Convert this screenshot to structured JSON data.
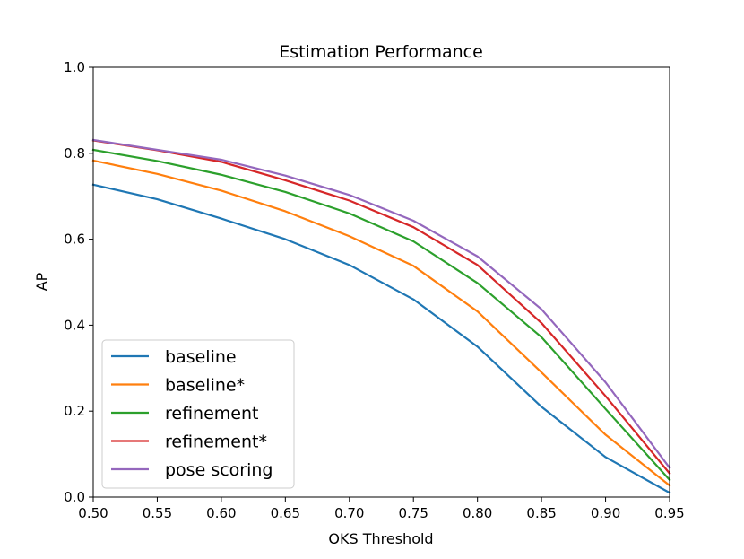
{
  "chart_data": {
    "type": "line",
    "title": "Estimation Performance",
    "xlabel": "OKS Threshold",
    "ylabel": "AP",
    "xlim": [
      0.5,
      0.95
    ],
    "ylim": [
      0.0,
      1.0
    ],
    "x": [
      0.5,
      0.55,
      0.6,
      0.65,
      0.7,
      0.75,
      0.8,
      0.85,
      0.9,
      0.95
    ],
    "xticks": [
      "0.50",
      "0.55",
      "0.60",
      "0.65",
      "0.70",
      "0.75",
      "0.80",
      "0.85",
      "0.90",
      "0.95"
    ],
    "yticks": [
      "0.0",
      "0.2",
      "0.4",
      "0.6",
      "0.8",
      "1.0"
    ],
    "grid": false,
    "legend_position": "bottom-left",
    "series": [
      {
        "name": "baseline",
        "color": "#1f77b4",
        "values": [
          0.727,
          0.693,
          0.648,
          0.6,
          0.54,
          0.46,
          0.35,
          0.21,
          0.093,
          0.01
        ]
      },
      {
        "name": "baseline*",
        "color": "#ff7f0e",
        "values": [
          0.783,
          0.752,
          0.713,
          0.665,
          0.607,
          0.538,
          0.432,
          0.29,
          0.145,
          0.027
        ]
      },
      {
        "name": "refinement",
        "color": "#2ca02c",
        "values": [
          0.808,
          0.782,
          0.75,
          0.71,
          0.66,
          0.595,
          0.498,
          0.372,
          0.205,
          0.04
        ]
      },
      {
        "name": "refinement*",
        "color": "#d62728",
        "values": [
          0.83,
          0.807,
          0.78,
          0.737,
          0.69,
          0.628,
          0.54,
          0.405,
          0.235,
          0.055
        ]
      },
      {
        "name": "pose scoring",
        "color": "#9467bd",
        "values": [
          0.831,
          0.808,
          0.785,
          0.748,
          0.703,
          0.643,
          0.56,
          0.437,
          0.267,
          0.068
        ]
      }
    ]
  }
}
